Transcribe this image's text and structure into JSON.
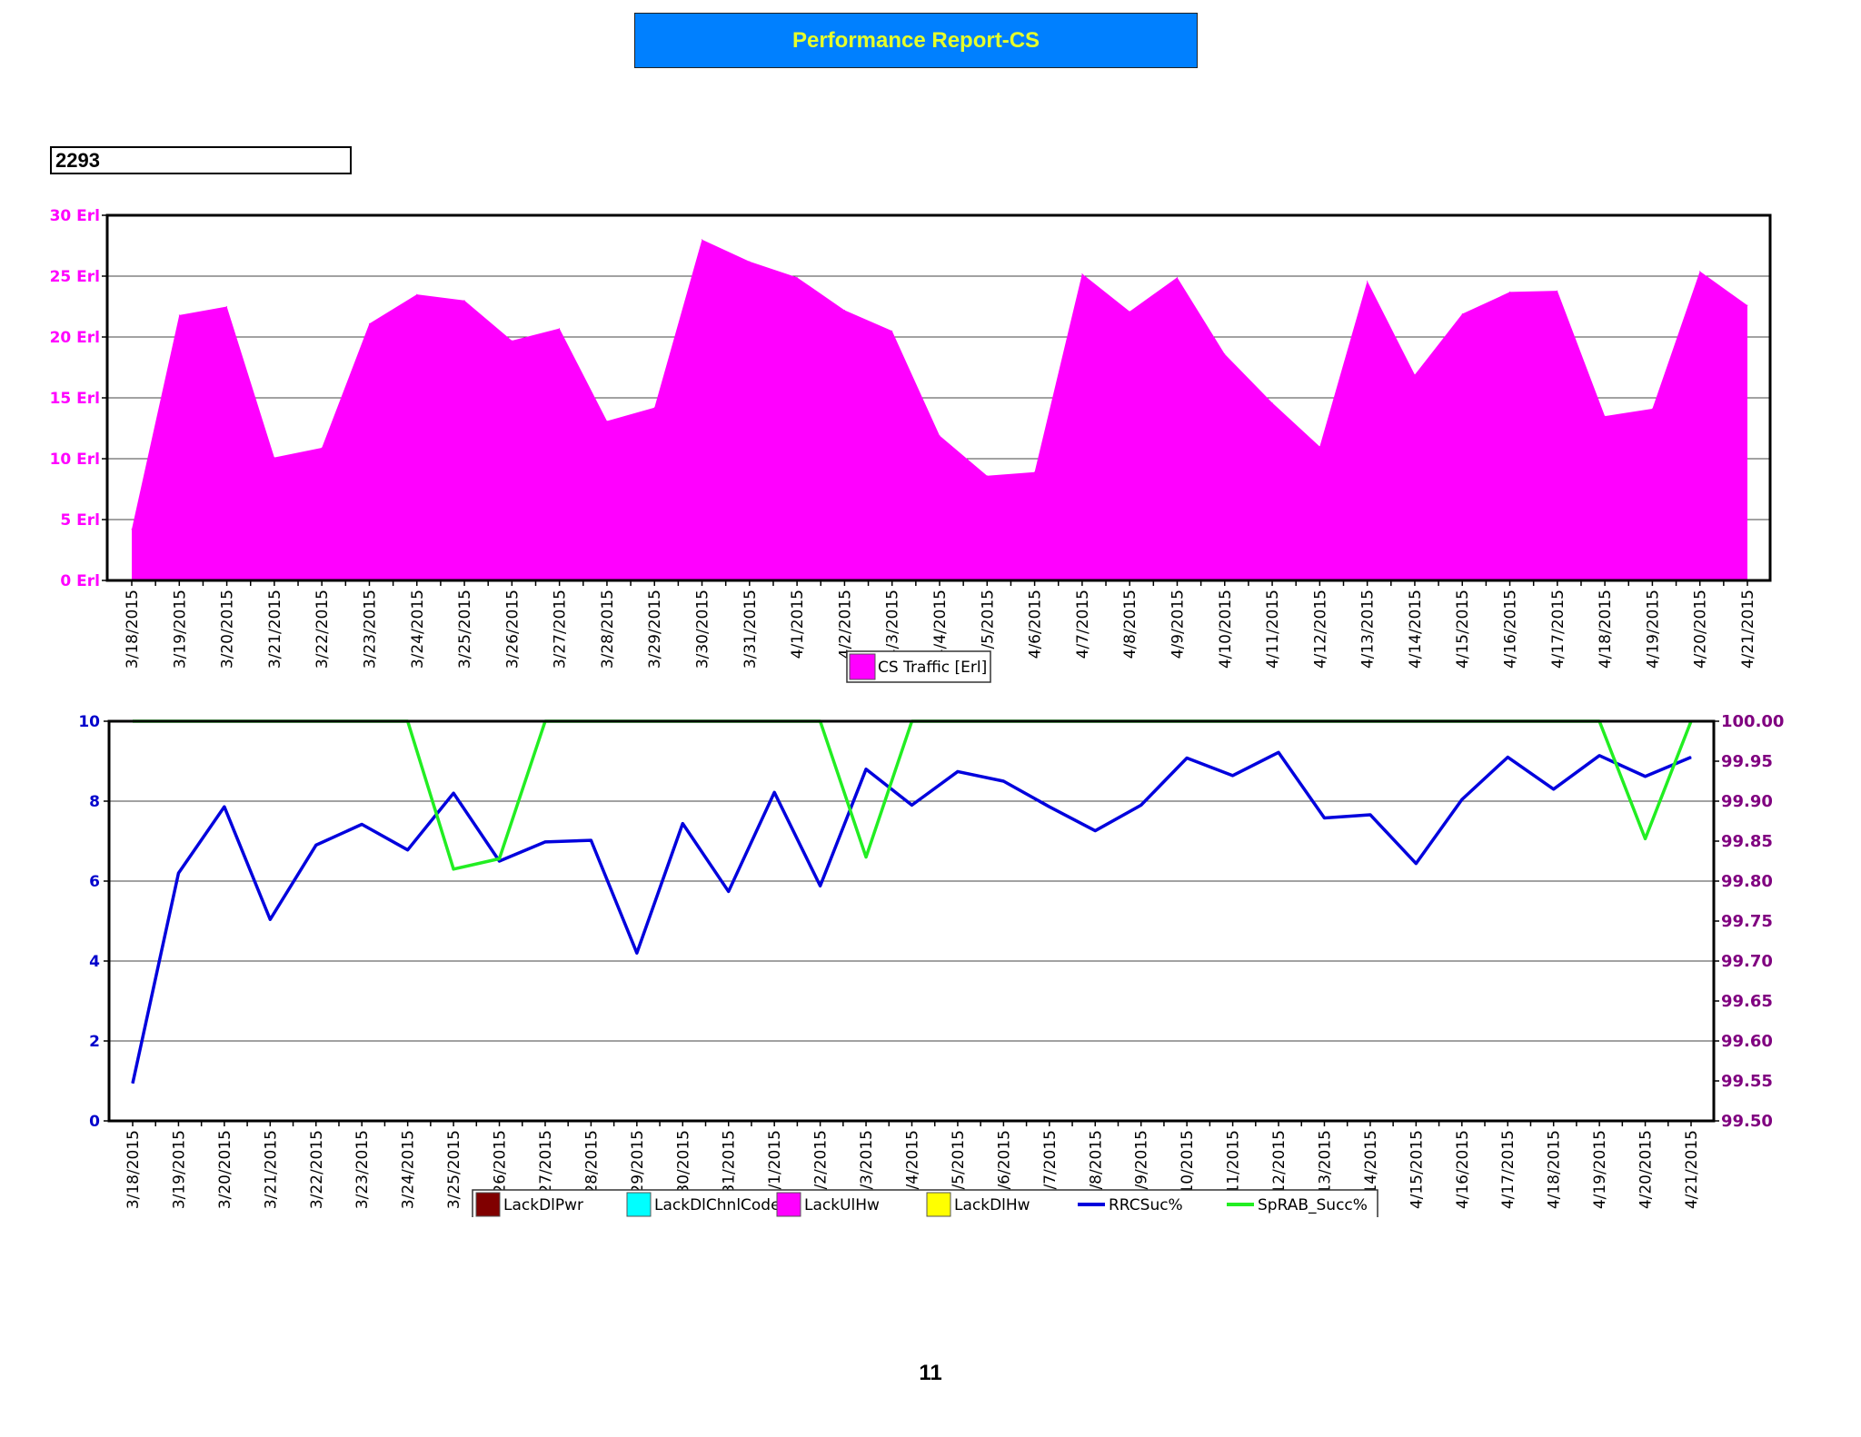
{
  "header": {
    "title": "Performance Report-CS",
    "site_id": "2293"
  },
  "page_number": "11",
  "colors": {
    "title_bg": "#0080ff",
    "title_text": "#e6ff2a",
    "traffic_fill": "#ff00ff",
    "rrc_line": "#0000dd",
    "sprab_line": "#22ee22",
    "left_axis": "#0000cc",
    "right_axis": "#800080",
    "lack_dl_pwr": "#800000",
    "lack_dl_chnl_code": "#00ffff",
    "lack_ul_hw": "#ff00ff",
    "lack_dl_hw": "#ffff00"
  },
  "chart_data": [
    {
      "type": "area",
      "categories": [
        "3/18/2015",
        "3/19/2015",
        "3/20/2015",
        "3/21/2015",
        "3/22/2015",
        "3/23/2015",
        "3/24/2015",
        "3/25/2015",
        "3/26/2015",
        "3/27/2015",
        "3/28/2015",
        "3/29/2015",
        "3/30/2015",
        "3/31/2015",
        "4/1/2015",
        "4/2/2015",
        "4/3/2015",
        "4/4/2015",
        "4/5/2015",
        "4/6/2015",
        "4/7/2015",
        "4/8/2015",
        "4/9/2015",
        "4/10/2015",
        "4/11/2015",
        "4/12/2015",
        "4/13/2015",
        "4/14/2015",
        "4/15/2015",
        "4/16/2015",
        "4/17/2015",
        "4/18/2015",
        "4/19/2015",
        "4/20/2015",
        "4/21/2015"
      ],
      "category_labels": [
        "3/18/2015",
        "3/19/2015",
        "3/20/2015",
        "3/21/2015",
        "3/22/2015",
        "3/23/2015",
        "3/24/2015",
        "3/25/2015",
        "3/26/2015",
        "3/27/2015",
        "3/28/2015",
        "3/29/2015",
        "3/30/2015",
        "3/31/2015",
        "4/1/2015",
        "4/2/2015",
        "4/3/2015",
        "4/4/2015",
        "/5/2015",
        "4/6/2015",
        "4/7/2015",
        "4/8/2015",
        "4/9/2015",
        "4/10/2015",
        "4/11/2015",
        "4/12/2015",
        "4/13/2015",
        "4/14/2015",
        "4/15/2015",
        "4/16/2015",
        "4/17/2015",
        "4/18/2015",
        "4/19/2015",
        "4/20/2015",
        "4/21/2015"
      ],
      "series": [
        {
          "name": "CS Traffic [Erl]",
          "values": [
            4.2,
            21.8,
            22.5,
            10.1,
            10.9,
            21.1,
            23.5,
            23.0,
            19.7,
            20.7,
            13.1,
            14.2,
            28.0,
            26.2,
            24.9,
            22.2,
            20.5,
            11.9,
            8.6,
            8.9,
            25.2,
            22.1,
            24.9,
            18.6,
            14.6,
            11.0,
            24.6,
            16.9,
            21.9,
            23.7,
            23.8,
            13.5,
            14.1,
            25.4,
            22.6
          ]
        }
      ],
      "yticks": [
        "0 Erl",
        "5 Erl",
        "10 Erl",
        "15 Erl",
        "20 Erl",
        "25 Erl",
        "30 Erl"
      ],
      "ylim": [
        0,
        30
      ],
      "grid": true,
      "legend": "bottom-center"
    },
    {
      "type": "line",
      "categories": [
        "3/18/2015",
        "3/19/2015",
        "3/20/2015",
        "3/21/2015",
        "3/22/2015",
        "3/23/2015",
        "3/24/2015",
        "3/25/2015",
        "3/26/2015",
        "3/27/2015",
        "3/28/2015",
        "3/29/2015",
        "3/30/2015",
        "3/31/2015",
        "4/1/2015",
        "4/2/2015",
        "4/3/2015",
        "4/4/2015",
        "4/5/2015",
        "4/6/2015",
        "4/7/2015",
        "4/8/2015",
        "4/9/2015",
        "4/10/2015",
        "4/11/2015",
        "4/12/2015",
        "4/13/2015",
        "4/14/2015",
        "4/15/2015",
        "4/16/2015",
        "4/17/2015",
        "4/18/2015",
        "4/19/2015",
        "4/20/2015",
        "4/21/2015"
      ],
      "category_labels": [
        "3/18/2015",
        "3/19/2015",
        "3/20/2015",
        "3/21/2015",
        "3/22/2015",
        "3/23/2015",
        "3/24/2015",
        "3/25/2015",
        "26/2015",
        "27/2015",
        "28/2015",
        "29/2015",
        "30/2015",
        "31/2015",
        "/1/2015",
        "/2/2015",
        "/3/2015",
        "/4/2015",
        "/5/2015",
        "/6/2015",
        "/7/2015",
        "/8/2015",
        "/9/2015",
        "10/2015",
        "11/2015",
        "12/2015",
        "13/2015",
        "14/2015",
        "4/15/2015",
        "4/16/2015",
        "4/17/2015",
        "4/18/2015",
        "4/19/2015",
        "4/20/2015",
        "4/21/2015"
      ],
      "series": [
        {
          "name": "LackDlPwr",
          "values": [
            0,
            0,
            0,
            0,
            0,
            0,
            0,
            0,
            0,
            0,
            0,
            0,
            0,
            0,
            0,
            0,
            0,
            0,
            0,
            0,
            0,
            0,
            0,
            0,
            0,
            0,
            0,
            0,
            0,
            0,
            0,
            0,
            0,
            0,
            0
          ],
          "axis": "left"
        },
        {
          "name": "LackDlChnlCode",
          "values": [
            0,
            0,
            0,
            0,
            0,
            0,
            0,
            0,
            0,
            0,
            0,
            0,
            0,
            0,
            0,
            0,
            0,
            0,
            0,
            0,
            0,
            0,
            0,
            0,
            0,
            0,
            0,
            0,
            0,
            0,
            0,
            0,
            0,
            0,
            0
          ],
          "axis": "left"
        },
        {
          "name": "LackUlHw",
          "values": [
            0,
            0,
            0,
            0,
            0,
            0,
            0,
            0,
            0,
            0,
            0,
            0,
            0,
            0,
            0,
            0,
            0,
            0,
            0,
            0,
            0,
            0,
            0,
            0,
            0,
            0,
            0,
            0,
            0,
            0,
            0,
            0,
            0,
            0,
            0
          ],
          "axis": "left"
        },
        {
          "name": "LackDlHw",
          "values": [
            0,
            0,
            0,
            0,
            0,
            0,
            0,
            0,
            0,
            0,
            0,
            0,
            0,
            0,
            0,
            0,
            0,
            0,
            0,
            0,
            0,
            0,
            0,
            0,
            0,
            0,
            0,
            0,
            0,
            0,
            0,
            0,
            0,
            0,
            0
          ],
          "axis": "left"
        },
        {
          "name": "RRCSuc%",
          "axis": "right",
          "values": [
            99.547,
            99.81,
            99.893,
            99.752,
            99.845,
            99.871,
            99.839,
            99.91,
            99.825,
            99.849,
            99.851,
            99.71,
            99.872,
            99.787,
            99.911,
            99.794,
            99.94,
            99.895,
            99.937,
            99.925,
            99.893,
            99.863,
            99.895,
            99.954,
            99.932,
            99.961,
            99.879,
            99.883,
            99.822,
            99.902,
            99.955,
            99.915,
            99.957,
            99.931,
            99.955
          ]
        },
        {
          "name": "SpRAB_Succ%",
          "axis": "right",
          "values": [
            100.0,
            100.0,
            100.0,
            100.0,
            100.0,
            100.0,
            100.0,
            99.815,
            99.828,
            100.0,
            100.0,
            100.0,
            100.0,
            100.0,
            100.0,
            100.0,
            99.83,
            100.0,
            100.0,
            100.0,
            100.0,
            100.0,
            100.0,
            100.0,
            100.0,
            100.0,
            100.0,
            100.0,
            100.0,
            100.0,
            100.0,
            100.0,
            100.0,
            99.853,
            100.0
          ]
        }
      ],
      "yticks_left": [
        "0",
        "2",
        "4",
        "6",
        "8",
        "10"
      ],
      "ylim_left": [
        0,
        10
      ],
      "yticks_right": [
        "99.50",
        "99.55",
        "99.60",
        "99.65",
        "99.70",
        "99.75",
        "99.80",
        "99.85",
        "99.90",
        "99.95",
        "100.00"
      ],
      "ylim_right": [
        99.5,
        100.0
      ],
      "grid": true,
      "legend": "bottom-center"
    }
  ]
}
